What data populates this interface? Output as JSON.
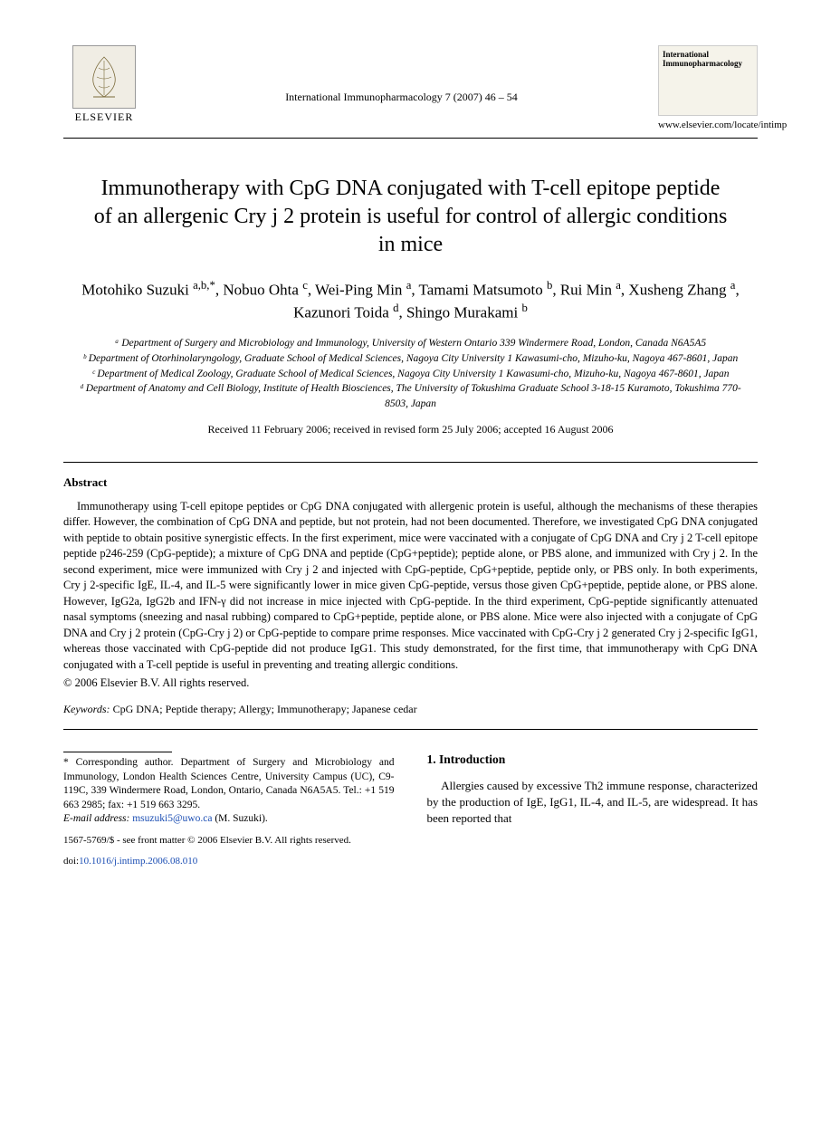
{
  "header": {
    "publisher_name": "ELSEVIER",
    "journal_ref": "International Immunopharmacology 7 (2007) 46 – 54",
    "journal_cover_title": "International Immunopharmacology",
    "journal_url": "www.elsevier.com/locate/intimp"
  },
  "title": "Immunotherapy with CpG DNA conjugated with T-cell epitope peptide of an allergenic Cry j 2 protein is useful for control of allergic conditions in mice",
  "authors_html": "Motohiko Suzuki <sup>a,b,*</sup>, Nobuo Ohta <sup>c</sup>, Wei-Ping Min <sup>a</sup>, Tamami Matsumoto <sup>b</sup>, Rui Min <sup>a</sup>, Xusheng Zhang <sup>a</sup>, Kazunori Toida <sup>d</sup>, Shingo Murakami <sup>b</sup>",
  "affiliations": [
    "ᵃ Department of Surgery and Microbiology and Immunology, University of Western Ontario 339 Windermere Road, London, Canada N6A5A5",
    "ᵇ Department of Otorhinolaryngology, Graduate School of Medical Sciences, Nagoya City University 1 Kawasumi-cho, Mizuho-ku, Nagoya 467-8601, Japan",
    "ᶜ Department of Medical Zoology, Graduate School of Medical Sciences, Nagoya City University 1 Kawasumi-cho, Mizuho-ku, Nagoya 467-8601, Japan",
    "ᵈ Department of Anatomy and Cell Biology, Institute of Health Biosciences, The University of Tokushima Graduate School 3-18-15 Kuramoto, Tokushima 770-8503, Japan"
  ],
  "dates": "Received 11 February 2006; received in revised form 25 July 2006; accepted 16 August 2006",
  "abstract": {
    "heading": "Abstract",
    "body": "Immunotherapy using T-cell epitope peptides or CpG DNA conjugated with allergenic protein is useful, although the mechanisms of these therapies differ. However, the combination of CpG DNA and peptide, but not protein, had not been documented. Therefore, we investigated CpG DNA conjugated with peptide to obtain positive synergistic effects. In the first experiment, mice were vaccinated with a conjugate of CpG DNA and Cry j 2 T-cell epitope peptide p246-259 (CpG-peptide); a mixture of CpG DNA and peptide (CpG+peptide); peptide alone, or PBS alone, and immunized with Cry j 2. In the second experiment, mice were immunized with Cry j 2 and injected with CpG-peptide, CpG+peptide, peptide only, or PBS only. In both experiments, Cry j 2-specific IgE, IL-4, and IL-5 were significantly lower in mice given CpG-peptide, versus those given CpG+peptide, peptide alone, or PBS alone. However, IgG2a, IgG2b and IFN-γ did not increase in mice injected with CpG-peptide. In the third experiment, CpG-peptide significantly attenuated nasal symptoms (sneezing and nasal rubbing) compared to CpG+peptide, peptide alone, or PBS alone. Mice were also injected with a conjugate of CpG DNA and Cry j 2 protein (CpG-Cry j 2) or CpG-peptide to compare prime responses. Mice vaccinated with CpG-Cry j 2 generated Cry j 2-specific IgG1, whereas those vaccinated with CpG-peptide did not produce IgG1. This study demonstrated, for the first time, that immunotherapy with CpG DNA conjugated with a T-cell peptide is useful in preventing and treating allergic conditions.",
    "copyright": "© 2006 Elsevier B.V. All rights reserved."
  },
  "keywords": {
    "label": "Keywords:",
    "text": " CpG DNA; Peptide therapy; Allergy; Immunotherapy; Japanese cedar"
  },
  "corresponding": {
    "note": "* Corresponding author. Department of Surgery and Microbiology and Immunology, London Health Sciences Centre, University Campus (UC), C9-119C, 339 Windermere Road, London, Ontario, Canada N6A5A5. Tel.: +1 519 663 2985; fax: +1 519 663 3295.",
    "email_label": "E-mail address:",
    "email": "msuzuki5@uwo.ca",
    "email_suffix": " (M. Suzuki)."
  },
  "intro": {
    "heading": "1. Introduction",
    "body": "Allergies caused by excessive Th2 immune response, characterized by the production of IgE, IgG1, IL-4, and IL-5, are widespread. It has been reported that"
  },
  "footer": {
    "issn_line": "1567-5769/$ - see front matter © 2006 Elsevier B.V. All rights reserved.",
    "doi_label": "doi:",
    "doi": "10.1016/j.intimp.2006.08.010"
  },
  "colors": {
    "text": "#000000",
    "link": "#1a4db3",
    "background": "#ffffff",
    "logo_bg": "#f0ede4"
  },
  "typography": {
    "body_font": "Times New Roman",
    "title_size_pt": 18,
    "author_size_pt": 13,
    "affil_size_pt": 9,
    "abstract_size_pt": 10,
    "footnote_size_pt": 9
  }
}
